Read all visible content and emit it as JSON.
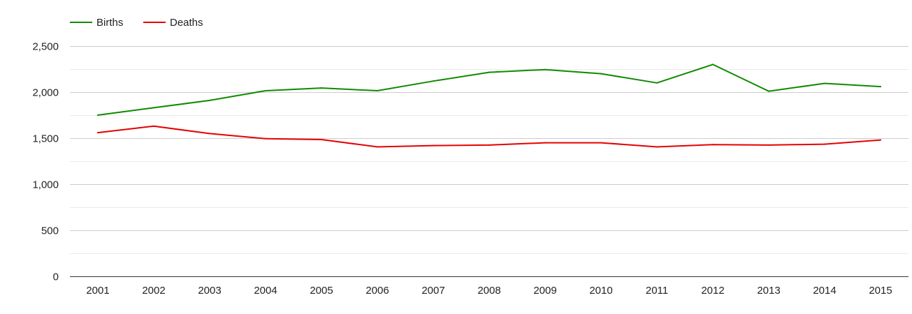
{
  "chart_data": {
    "type": "line",
    "title": "",
    "xlabel": "",
    "ylabel": "",
    "categories": [
      "2001",
      "2002",
      "2003",
      "2004",
      "2005",
      "2006",
      "2007",
      "2008",
      "2009",
      "2010",
      "2011",
      "2012",
      "2013",
      "2014",
      "2015"
    ],
    "ylim": [
      0,
      2500
    ],
    "yticks": [
      0,
      500,
      1000,
      1500,
      2000,
      2500
    ],
    "ytick_labels": [
      "0",
      "500",
      "1,000",
      "1,500",
      "2,000",
      "2,500"
    ],
    "grid": true,
    "minor_grid": true,
    "legend_position": "top-left",
    "series": [
      {
        "name": "Births",
        "color": "#108a00",
        "values": [
          1750,
          1830,
          1910,
          2015,
          2045,
          2015,
          2120,
          2215,
          2245,
          2200,
          2100,
          2300,
          2010,
          2095,
          2060
        ]
      },
      {
        "name": "Deaths",
        "color": "#e60000",
        "values": [
          1560,
          1630,
          1550,
          1495,
          1485,
          1405,
          1420,
          1425,
          1450,
          1450,
          1405,
          1430,
          1425,
          1435,
          1480
        ]
      }
    ]
  }
}
